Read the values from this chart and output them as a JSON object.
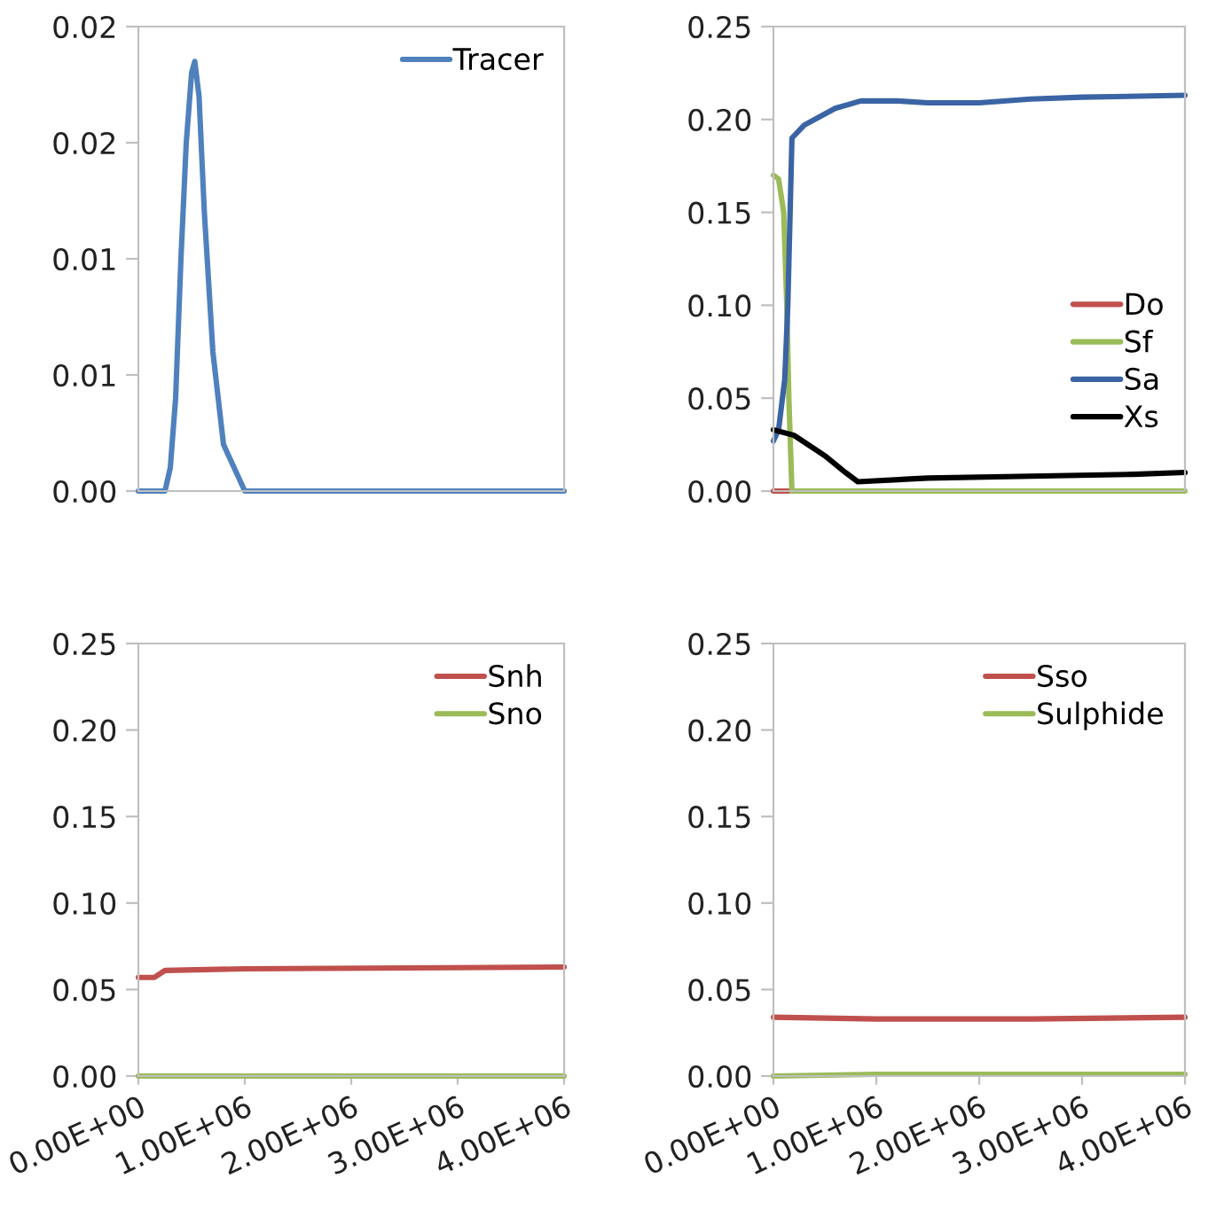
{
  "chart_data": [
    {
      "type": "line",
      "legend": "top right",
      "tick_labels": "y",
      "xlim": [
        0,
        4000000
      ],
      "xticks": [
        {
          "value": 0,
          "label": null
        },
        {
          "value": 1000000,
          "label": null
        },
        {
          "value": 2000000,
          "label": null
        },
        {
          "value": 3000000,
          "label": null
        },
        {
          "value": 4000000,
          "label": null
        }
      ],
      "ylim": [
        0,
        0.02
      ],
      "yticks": [
        {
          "value": 0,
          "label": "0.00"
        },
        {
          "value": 0.005,
          "label": "0.01"
        },
        {
          "value": 0.01,
          "label": "0.01"
        },
        {
          "value": 0.015,
          "label": "0.02"
        },
        {
          "value": 0.02,
          "label": "0.02"
        }
      ],
      "grid": false,
      "series": [
        {
          "name": "Tracer",
          "color": "#4f81bd",
          "x": [
            0,
            250000,
            300000,
            350000,
            400000,
            450000,
            500000,
            530000,
            570000,
            620000,
            700000,
            800000,
            900000,
            1000000,
            4000000
          ],
          "values": [
            0,
            0,
            0.001,
            0.004,
            0.01,
            0.015,
            0.018,
            0.0185,
            0.017,
            0.012,
            0.006,
            0.002,
            0.001,
            0,
            0
          ]
        }
      ]
    },
    {
      "type": "line",
      "legend": "bottom right",
      "tick_labels": "y",
      "xlim": [
        0,
        4000000
      ],
      "xticks": [
        {
          "value": 0,
          "label": null
        },
        {
          "value": 1000000,
          "label": null
        },
        {
          "value": 2000000,
          "label": null
        },
        {
          "value": 3000000,
          "label": null
        },
        {
          "value": 4000000,
          "label": null
        }
      ],
      "ylim": [
        0,
        0.25
      ],
      "yticks": [
        {
          "value": 0,
          "label": "0.00"
        },
        {
          "value": 0.05,
          "label": "0.05"
        },
        {
          "value": 0.1,
          "label": "0.10"
        },
        {
          "value": 0.15,
          "label": "0.15"
        },
        {
          "value": 0.2,
          "label": "0.20"
        },
        {
          "value": 0.25,
          "label": "0.25"
        }
      ],
      "grid": false,
      "series": [
        {
          "name": "Do",
          "color": "#c0504d",
          "x": [
            0,
            150000
          ],
          "values": [
            0,
            0
          ]
        },
        {
          "name": "Sf",
          "color": "#9bbb59",
          "x": [
            0,
            50000,
            100000,
            130000,
            150000,
            180000,
            4000000
          ],
          "values": [
            0.17,
            0.168,
            0.15,
            0.1,
            0.05,
            0,
            0
          ]
        },
        {
          "name": "Sa",
          "color": "#3a64a3",
          "x": [
            0,
            50000,
            110000,
            140000,
            180000,
            300000,
            600000,
            850000,
            1200000,
            1500000,
            2000000,
            2500000,
            3000000,
            4000000
          ],
          "values": [
            0.027,
            0.033,
            0.06,
            0.1,
            0.19,
            0.197,
            0.206,
            0.21,
            0.21,
            0.209,
            0.209,
            0.211,
            0.212,
            0.213
          ]
        },
        {
          "name": "Xs",
          "color": "#000000",
          "x": [
            0,
            200000,
            500000,
            700000,
            820000,
            1500000,
            2500000,
            3500000,
            4000000
          ],
          "values": [
            0.033,
            0.03,
            0.019,
            0.01,
            0.005,
            0.007,
            0.008,
            0.009,
            0.01
          ]
        }
      ]
    },
    {
      "type": "line",
      "legend": "top right",
      "xlim": [
        0,
        4000000
      ],
      "xticks": [
        {
          "value": 0,
          "label": "0.00E+00"
        },
        {
          "value": 1000000,
          "label": "1.00E+06"
        },
        {
          "value": 2000000,
          "label": "2.00E+06"
        },
        {
          "value": 3000000,
          "label": "3.00E+06"
        },
        {
          "value": 4000000,
          "label": "4.00E+06"
        }
      ],
      "ylim": [
        0,
        0.25
      ],
      "yticks": [
        {
          "value": 0,
          "label": "0.00"
        },
        {
          "value": 0.05,
          "label": "0.05"
        },
        {
          "value": 0.1,
          "label": "0.10"
        },
        {
          "value": 0.15,
          "label": "0.15"
        },
        {
          "value": 0.2,
          "label": "0.20"
        },
        {
          "value": 0.25,
          "label": "0.25"
        }
      ],
      "grid": false,
      "series": [
        {
          "name": "Snh",
          "color": "#c0504d",
          "x": [
            0,
            150000,
            250000,
            1000000,
            4000000
          ],
          "values": [
            0.057,
            0.057,
            0.061,
            0.062,
            0.063
          ]
        },
        {
          "name": "Sno",
          "color": "#9bbb59",
          "x": [
            0,
            4000000
          ],
          "values": [
            0,
            0
          ]
        }
      ]
    },
    {
      "type": "line",
      "legend": "top right",
      "xlim": [
        0,
        4000000
      ],
      "xticks": [
        {
          "value": 0,
          "label": "0.00E+00"
        },
        {
          "value": 1000000,
          "label": "1.00E+06"
        },
        {
          "value": 2000000,
          "label": "2.00E+06"
        },
        {
          "value": 3000000,
          "label": "3.00E+06"
        },
        {
          "value": 4000000,
          "label": "4.00E+06"
        }
      ],
      "ylim": [
        0,
        0.25
      ],
      "yticks": [
        {
          "value": 0,
          "label": "0.00"
        },
        {
          "value": 0.05,
          "label": "0.05"
        },
        {
          "value": 0.1,
          "label": "0.10"
        },
        {
          "value": 0.15,
          "label": "0.15"
        },
        {
          "value": 0.2,
          "label": "0.20"
        },
        {
          "value": 0.25,
          "label": "0.25"
        }
      ],
      "grid": false,
      "series": [
        {
          "name": "Sso",
          "color": "#c0504d",
          "x": [
            0,
            1000000,
            2500000,
            4000000
          ],
          "values": [
            0.034,
            0.033,
            0.033,
            0.034
          ]
        },
        {
          "name": "Sulphide",
          "color": "#9bbb59",
          "x": [
            0,
            1000000,
            3000000,
            4000000
          ],
          "values": [
            0,
            0.001,
            0.001,
            0.001
          ]
        }
      ]
    }
  ]
}
